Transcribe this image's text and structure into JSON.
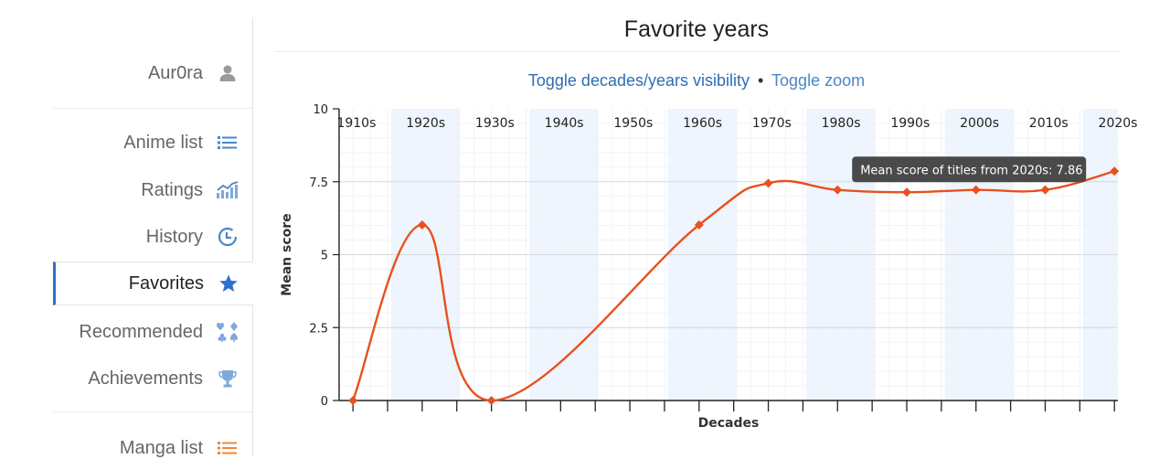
{
  "sidebar": {
    "user": {
      "label": "Aur0ra",
      "icon": "user-icon"
    },
    "items": [
      {
        "label": "Anime list",
        "icon": "list-icon",
        "color": "#4a86c8"
      },
      {
        "label": "Ratings",
        "icon": "chart-icon",
        "color": "#4a86c8"
      },
      {
        "label": "History",
        "icon": "history-icon",
        "color": "#4a86c8"
      },
      {
        "label": "Favorites",
        "icon": "star-icon",
        "color": "#2f6fd0",
        "active": true
      },
      {
        "label": "Recommended",
        "icon": "cards-icon",
        "color": "#4a86c8"
      },
      {
        "label": "Achievements",
        "icon": "trophy-icon",
        "color": "#4a86c8"
      }
    ],
    "manga": {
      "label": "Manga list",
      "icon": "list-icon",
      "color": "#f0883e"
    }
  },
  "page": {
    "title": "Favorite years",
    "toggle_visibility": "Toggle decades/years visibility",
    "separator": "•",
    "toggle_zoom": "Toggle zoom"
  },
  "colors": {
    "line": "#e8501e",
    "band": "#eef5fe",
    "link": "#2e6db4"
  },
  "chart_data": {
    "type": "line",
    "title": "",
    "xlabel": "Decades",
    "ylabel": "Mean score",
    "ylim": [
      0,
      10
    ],
    "yticks": [
      "0",
      "2.5",
      "5",
      "7.5",
      "10"
    ],
    "categories": [
      "1910s",
      "1920s",
      "1930s",
      "1940s",
      "1950s",
      "1960s",
      "1970s",
      "1980s",
      "1990s",
      "2000s",
      "2010s",
      "2020s"
    ],
    "series": [
      {
        "points": [
          {
            "x": 1910,
            "y": 0
          },
          {
            "x": 1920,
            "y": 6.02
          },
          {
            "x": 1930,
            "y": 0
          },
          {
            "x": 1960,
            "y": 6.02
          },
          {
            "x": 1970,
            "y": 7.45
          },
          {
            "x": 1980,
            "y": 7.22
          },
          {
            "x": 1990,
            "y": 7.14
          },
          {
            "x": 2000,
            "y": 7.22
          },
          {
            "x": 2010,
            "y": 7.22
          },
          {
            "x": 2020,
            "y": 7.86
          }
        ]
      }
    ],
    "tooltip": "Mean score of titles from 2020s: 7.86",
    "grid": true
  }
}
